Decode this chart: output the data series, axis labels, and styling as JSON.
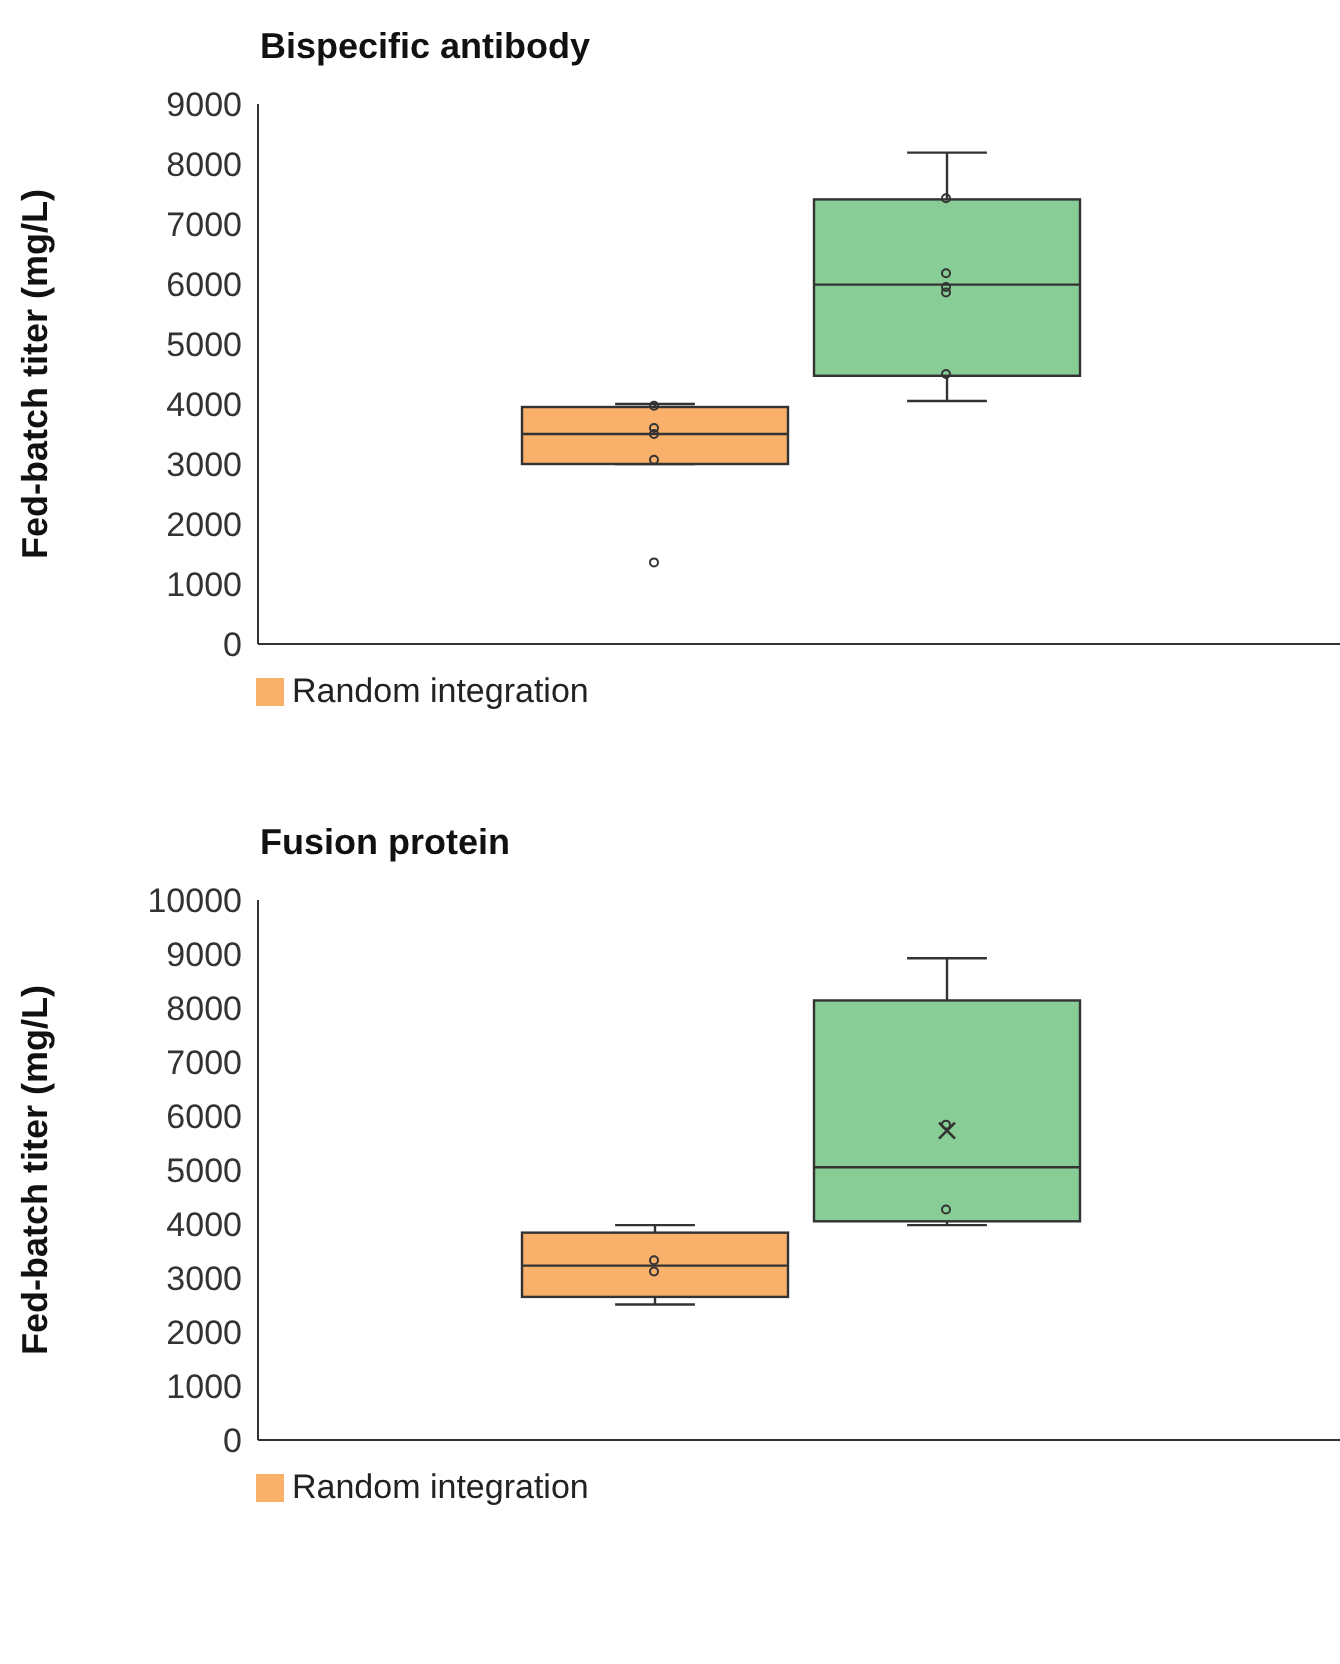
{
  "chart_data": [
    {
      "type": "box",
      "title": "Bispecific antibody",
      "ylabel": "Fed-batch titer (mg/L)",
      "categories": [
        null,
        null
      ],
      "ylim": [
        0,
        9000
      ],
      "yticks": [
        0,
        1000,
        2000,
        3000,
        4000,
        5000,
        6000,
        7000,
        8000,
        9000
      ],
      "legend": "bottom left",
      "series": [
        {
          "name": "Random integration",
          "color": "#f9b06a",
          "boxes": [
            {
              "low": 3000,
              "q1": 3000,
              "median": 3500,
              "q3": 3950,
              "high": 4000,
              "outliers": [
                3970,
                3600,
                3500,
                3070,
                1360
              ]
            },
            null
          ]
        },
        {
          "color": "#88cc96",
          "boxes": [
            null,
            {
              "low": 4050,
              "q1": 4470,
              "median": 5990,
              "q3": 7410,
              "high": 8190,
              "outliers": [
                7430,
                6180,
                5950,
                5860,
                4500
              ]
            }
          ]
        }
      ]
    },
    {
      "type": "box",
      "title": "Fusion protein",
      "ylabel": "Fed-batch titer (mg/L)",
      "categories": [
        null,
        null
      ],
      "ylim": [
        0,
        10000
      ],
      "yticks": [
        0,
        1000,
        2000,
        3000,
        4000,
        5000,
        6000,
        7000,
        8000,
        9000,
        10000
      ],
      "legend": "bottom left",
      "series": [
        {
          "name": "Random integration",
          "color": "#f9b06a",
          "boxes": [
            {
              "low": 2510,
              "q1": 2650,
              "median": 3230,
              "q3": 3840,
              "high": 3980,
              "outliers": [
                3330,
                3120
              ]
            },
            null
          ]
        },
        {
          "color": "#88cc96",
          "boxes": [
            null,
            {
              "low": 3980,
              "q1": 4050,
              "median": 5050,
              "q3": 8140,
              "high": 8920,
              "mean": 5730,
              "outliers": [
                5840,
                4270
              ]
            }
          ]
        }
      ]
    }
  ]
}
